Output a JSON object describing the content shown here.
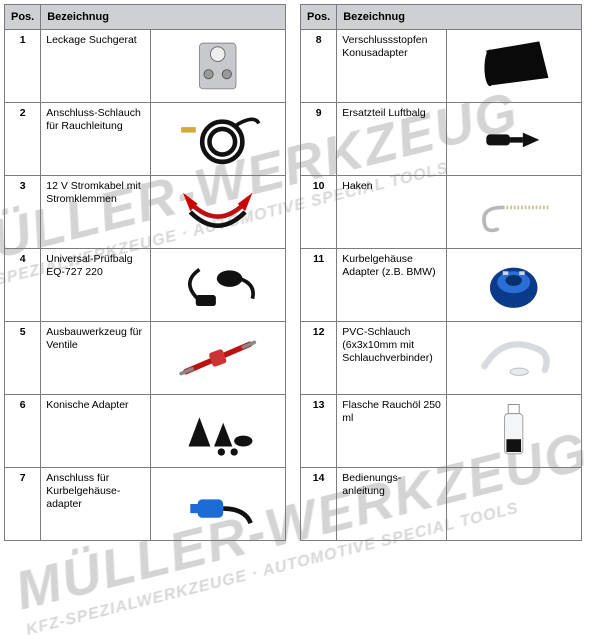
{
  "watermark": {
    "main": "MÜLLER-WERKZEUG",
    "sub": "KFZ-SPEZIALWERKZEUGE · AUTOMOTIVE SPECIAL TOOLS"
  },
  "headers": {
    "pos": "Pos.",
    "desc": "Bezeichnug"
  },
  "left_rows": [
    {
      "pos": "1",
      "desc": "Leckage Suchgerat",
      "icon": "device-box"
    },
    {
      "pos": "2",
      "desc": "Anschluss-Schlauch für Rauchleitung",
      "icon": "hose-coil"
    },
    {
      "pos": "3",
      "desc": "12 V Stromkabel mit Stromklemmen",
      "icon": "jumper-clamps"
    },
    {
      "pos": "4",
      "desc": "Universal-Prüfbalg EQ-727 220",
      "icon": "test-bellow"
    },
    {
      "pos": "5",
      "desc": "Ausbauwerkzeug für Ventile",
      "icon": "valve-tool"
    },
    {
      "pos": "6",
      "desc": "Konische Adapter",
      "icon": "cone-adapters"
    },
    {
      "pos": "7",
      "desc": "Anschluss für Kurbelgehäuse-adapter",
      "icon": "blue-connector"
    }
  ],
  "right_rows": [
    {
      "pos": "8",
      "desc": "Verschlussstopfen Konusadapter",
      "icon": "black-cone"
    },
    {
      "pos": "9",
      "desc": "Ersatzteil Luftbalg",
      "icon": "spare-bellow"
    },
    {
      "pos": "10",
      "desc": "Haken",
      "icon": "hook"
    },
    {
      "pos": "11",
      "desc": "Kurbelgehäuse Adapter (z.B. BMW)",
      "icon": "blue-adapter"
    },
    {
      "pos": "12",
      "desc": "PVC-Schlauch (6x3x10mm mit Schlauchverbinder)",
      "icon": "pvc-hose"
    },
    {
      "pos": "13",
      "desc": "Flasche Rauchöl 250 ml",
      "icon": "bottle"
    },
    {
      "pos": "14",
      "desc": "Bedienungs-anleitung",
      "icon": "manual"
    }
  ],
  "colors": {
    "header_bg": "#cfd0d4",
    "border": "#7a7c80",
    "text": "#000000",
    "watermark": "rgba(160,160,160,0.32)"
  }
}
